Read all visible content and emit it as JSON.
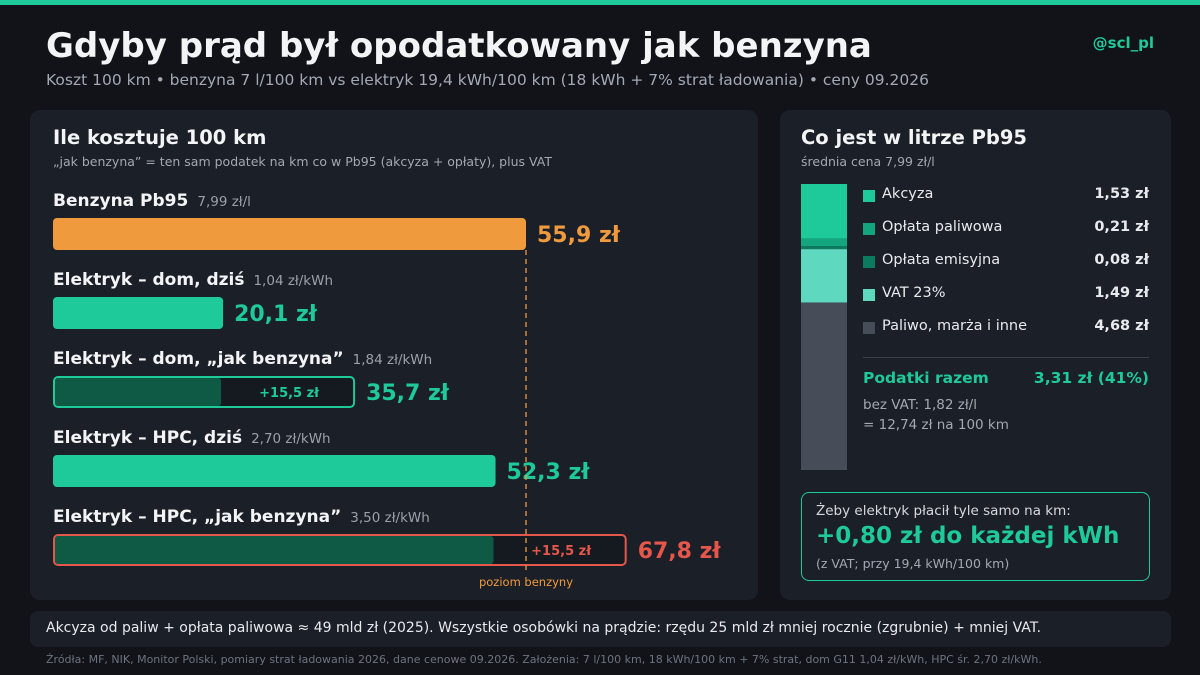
{
  "header": {
    "title": "Gdyby prąd był opodatkowany jak benzyna",
    "handle": "@scl_pl",
    "subtitle": "Koszt 100 km  •  benzyna 7 l/100 km vs elektryk 19,4 kWh/100 km (18 kWh + 7% strat ładowania)  •  ceny 09.2026"
  },
  "colors": {
    "accent": "#1ec99a",
    "petrol": "#f09a3e",
    "warning": "#e5564b",
    "dark_green": "#0f5a44",
    "tax_mint": "#5fd8c0",
    "other_gray": "#464d59"
  },
  "chart_data": [
    {
      "type": "bar",
      "title": "Ile kosztuje 100 km",
      "note": "„jak benzyna” = ten sam podatek na km co w Pb95 (akcyza + opłaty), plus VAT",
      "reference_line_label": "poziom benzyny",
      "bars": [
        {
          "label": "Benzyna Pb95",
          "price": "7,99 zł/l",
          "value": 55.9,
          "value_label": "55,9 zł",
          "style": "petrol"
        },
        {
          "label": "Elektryk – dom, dziś",
          "price": "1,04 zł/kWh",
          "value": 20.1,
          "value_label": "20,1 zł",
          "style": "ev"
        },
        {
          "label": "Elektryk – dom, „jak benzyna”",
          "price": "1,84 zł/kWh",
          "value": 35.7,
          "value_label": "35,7 zł",
          "base": 20.1,
          "extra": 15.5,
          "extra_label": "+15,5 zł",
          "style": "ev-taxed"
        },
        {
          "label": "Elektryk – HPC, dziś",
          "price": "2,70 zł/kWh",
          "value": 52.3,
          "value_label": "52,3 zł",
          "style": "ev"
        },
        {
          "label": "Elektryk – HPC, „jak benzyna”",
          "price": "3,50 zł/kWh",
          "value": 67.8,
          "value_label": "67,8 zł",
          "base": 52.3,
          "extra": 15.5,
          "extra_label": "+15,5 zł",
          "style": "ev-over"
        }
      ],
      "reference_value": 55.9
    },
    {
      "type": "bar",
      "stacked": true,
      "title": "Co jest w litrze Pb95",
      "note": "średnia cena 7,99 zł/l",
      "segments": [
        {
          "name": "Akcyza",
          "value": 1.53,
          "value_label": "1,53 zł",
          "color": "#1ec99a"
        },
        {
          "name": "Opłata paliwowa",
          "value": 0.21,
          "value_label": "0,21 zł",
          "color": "#13a57d"
        },
        {
          "name": "Opłata emisyjna",
          "value": 0.08,
          "value_label": "0,08 zł",
          "color": "#0c7a5c"
        },
        {
          "name": "VAT 23%",
          "value": 1.49,
          "value_label": "1,49 zł",
          "color": "#5fd8c0"
        },
        {
          "name": "Paliwo, marża i inne",
          "value": 4.68,
          "value_label": "4,68 zł",
          "color": "#464d59"
        }
      ],
      "total": 7.99
    }
  ],
  "taxes": {
    "label": "Podatki razem",
    "value": "3,31 zł (41%)",
    "note1": "bez VAT: 1,82 zł/l",
    "note2": "= 12,74 zł na 100 km"
  },
  "callout": {
    "line1": "Żeby elektryk płacił tyle samo na km:",
    "headline": "+0,80 zł do każdej kWh",
    "note": "(z VAT; przy 19,4 kWh/100 km)"
  },
  "footer": {
    "text": "Akcyza od paliw + opłata paliwowa ≈ 49 mld zł (2025). Wszystkie osobówki na prądzie: rzędu 25 mld zł mniej rocznie (zgrubnie) + mniej VAT.",
    "sources": "Źródła: MF, NIK, Monitor Polski, pomiary strat ładowania 2026, dane cenowe 09.2026. Założenia: 7 l/100 km, 18 kWh/100 km + 7% strat, dom G11 1,04 zł/kWh, HPC śr. 2,70 zł/kWh."
  }
}
